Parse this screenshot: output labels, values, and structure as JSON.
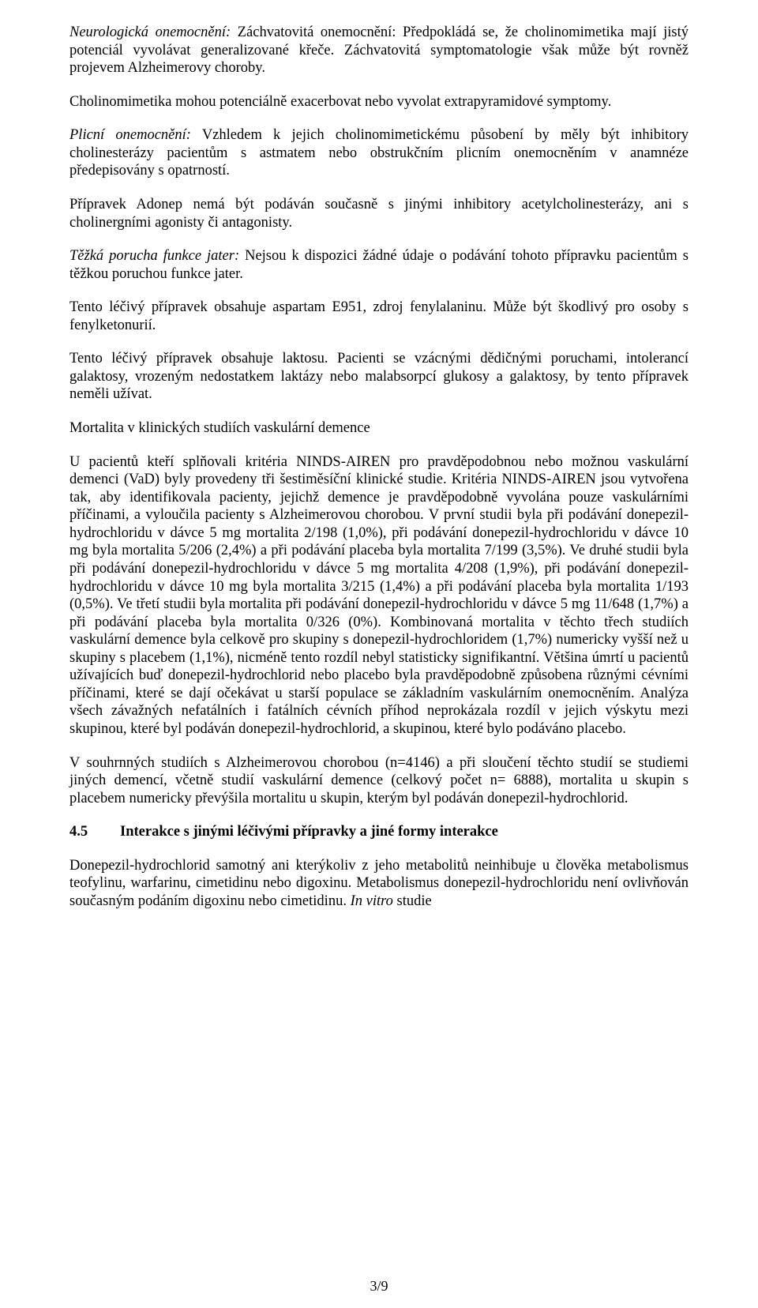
{
  "p1_lead": "Neurologická onemocnění:",
  "p1_body": " Záchvatovitá onemocnění: Předpokládá se, že cholinomimetika mají jistý potenciál vyvolávat generalizované křeče. Záchvatovitá symptomatologie však může být rovněž projevem Alzheimerovy choroby.",
  "p2": "Cholinomimetika mohou potenciálně exacerbovat nebo vyvolat extrapyramidové symptomy.",
  "p3_lead": "Plicní onemocnění:",
  "p3_body": " Vzhledem k jejich cholinomimetickému působení by měly být inhibitory cholinesterázy pacientům s astmatem nebo obstrukčním plicním onemocněním v anamnéze předepisovány s opatrností.",
  "p4": "Přípravek Adonep nemá být podáván současně s jinými inhibitory acetylcholinesterázy, ani s cholinergními agonisty či antagonisty.",
  "p5_lead": "Těžká porucha funkce jater:",
  "p5_body": " Nejsou k dispozici žádné údaje o podávání tohoto přípravku pacientům s těžkou poruchou funkce jater.",
  "p6": "Tento léčivý přípravek obsahuje aspartam E951, zdroj fenylalaninu. Může být škodlivý pro osoby s fenylketonurií.",
  "p7": "Tento léčivý přípravek obsahuje laktosu. Pacienti se vzácnými dědičnými poruchami, intolerancí galaktosy, vrozeným nedostatkem laktázy nebo malabsorpcí glukosy a galaktosy, by tento přípravek neměli užívat.",
  "p8": "Mortalita v klinických studiích vaskulární demence",
  "p9": "U pacientů kteří splňovali kritéria NINDS-AIREN pro pravděpodobnou nebo možnou vaskulární demenci (VaD) byly provedeny tři šestiměsíční klinické studie. Kritéria NINDS-AIREN jsou vytvořena tak, aby identifikovala pacienty, jejichž demence je pravděpodobně vyvolána pouze vaskulárními příčinami, a vyloučila pacienty s Alzheimerovou chorobou. V první studii byla při podávání donepezil-hydrochloridu v dávce 5 mg mortalita 2/198 (1,0%), při podávání donepezil-hydrochloridu v dávce 10 mg byla mortalita 5/206 (2,4%) a při podávání placeba byla mortalita 7/199 (3,5%). Ve druhé studii byla při podávání donepezil-hydrochloridu v dávce 5 mg mortalita 4/208 (1,9%), při podávání donepezil-hydrochloridu v dávce 10 mg byla mortalita 3/215 (1,4%) a při podávání placeba byla mortalita 1/193 (0,5%). Ve třetí studii byla mortalita při podávání  donepezil-hydrochloridu v dávce 5 mg 11/648 (1,7%) a při podávání placeba byla mortalita 0/326 (0%). Kombinovaná mortalita v těchto třech studiích vaskulární demence byla celkově pro skupiny s donepezil-hydrochloridem (1,7%) numericky vyšší než u skupiny s placebem (1,1%), nicméně tento rozdíl nebyl statisticky signifikantní. Většina úmrtí u pacientů užívajících buď donepezil-hydrochlorid nebo placebo byla pravděpodobně způsobena různými cévními příčinami, které se dají očekávat u starší populace se základním vaskulárním onemocněním. Analýza všech závažných nefatálních i fatálních cévních příhod neprokázala rozdíl v jejich výskytu mezi skupinou, které byl podáván donepezil-hydrochlorid, a skupinou, které bylo podáváno placebo.",
  "p10": "V souhrnných studiích s Alzheimerovou chorobou (n=4146) a při sloučení těchto studií se studiemi jiných demencí, včetně studií vaskulární demence (celkový počet n= 6888), mortalita u skupin s placebem numericky převýšila mortalitu u skupin, kterým byl podáván donepezil-hydrochlorid.",
  "section_num": "4.5",
  "section_title": "Interakce s jinými léčivými přípravky a jiné formy interakce",
  "p11a": "Donepezil-hydrochlorid samotný ani kterýkoliv z jeho metabolitů neinhibuje u člověka metabolismus teofylinu, warfarinu, cimetidinu nebo digoxinu. Metabolismus donepezil-hydrochloridu není ovlivňován současným podáním digoxinu nebo cimetidinu. ",
  "p11b": "In vitro",
  "p11c": " studie",
  "page_number": "3/9"
}
